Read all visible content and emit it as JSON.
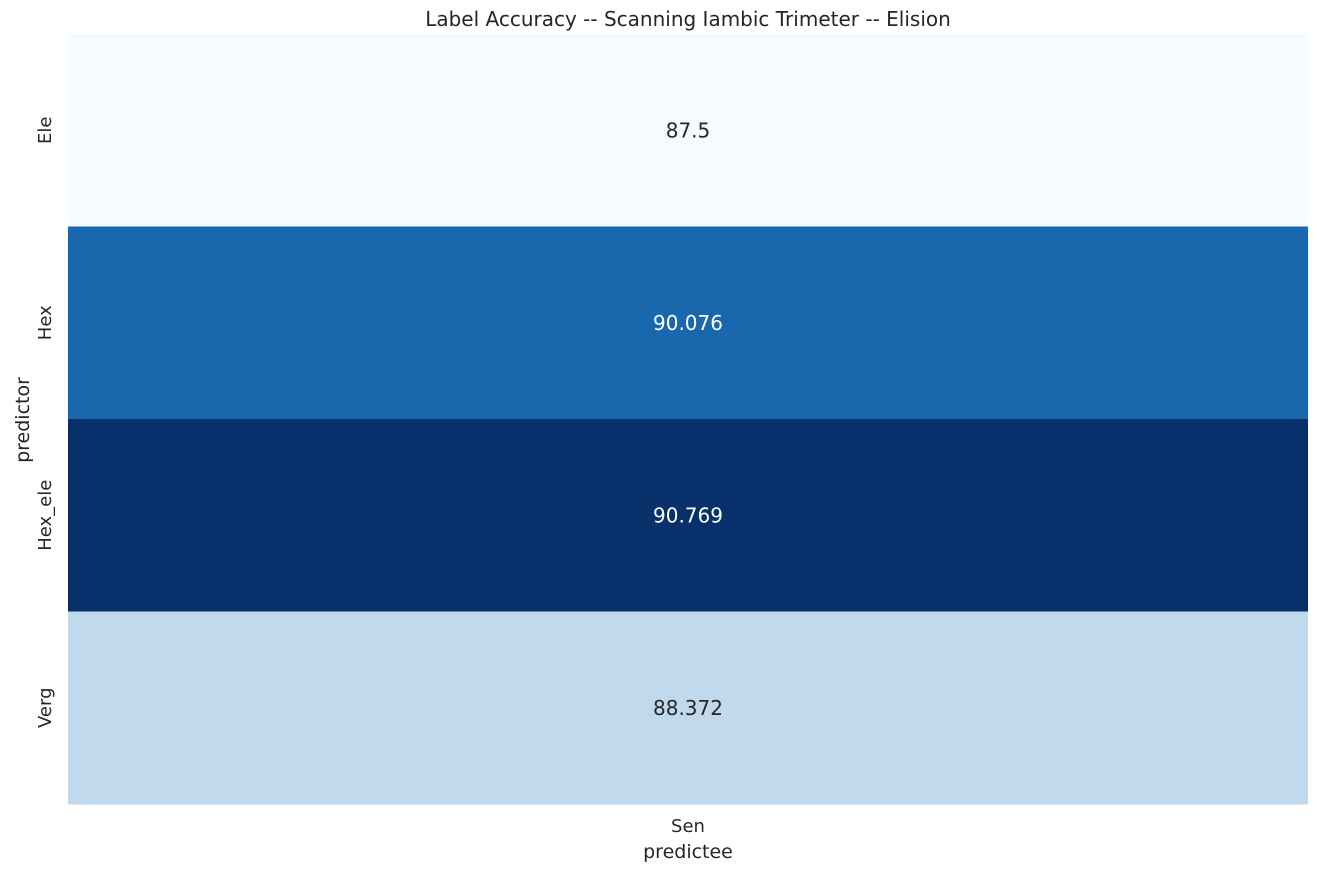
{
  "chart_data": {
    "type": "heatmap",
    "title": "Label Accuracy -- Scanning Iambic Trimeter -- Elision",
    "xlabel": "predictee",
    "ylabel": "predictor",
    "x_categories": [
      "Sen"
    ],
    "y_categories": [
      "Ele",
      "Hex",
      "Hex_ele",
      "Verg"
    ],
    "values": [
      [
        87.5
      ],
      [
        90.076
      ],
      [
        90.769
      ],
      [
        88.372
      ]
    ],
    "value_labels": [
      [
        "87.5"
      ],
      [
        "90.076"
      ],
      [
        "90.769"
      ],
      [
        "88.372"
      ]
    ],
    "colormap": "Blues",
    "value_range": [
      87.5,
      90.769
    ],
    "colorbar": false,
    "grid": false
  }
}
